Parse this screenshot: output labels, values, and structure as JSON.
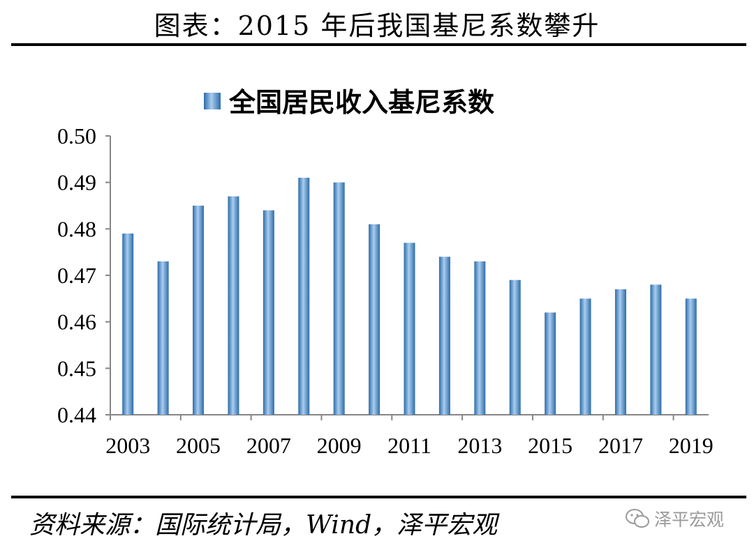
{
  "header": {
    "title": "图表：2015 年后我国基尼系数攀升"
  },
  "footer": {
    "source": "资料来源：国际统计局，Wind，泽平宏观"
  },
  "watermark": {
    "text": "泽平宏观",
    "icon": "wechat-icon"
  },
  "colors": {
    "bar_light": "#a9cdef",
    "bar_mid": "#5b9bd5",
    "bar_dark": "#2e6ca8"
  },
  "chart_data": {
    "type": "bar",
    "title": "",
    "legend": {
      "label": "全国居民收入基尼系数",
      "placement": "top"
    },
    "categories": [
      "2003",
      "2004",
      "2005",
      "2006",
      "2007",
      "2008",
      "2009",
      "2010",
      "2011",
      "2012",
      "2013",
      "2014",
      "2015",
      "2016",
      "2017",
      "2018",
      "2019"
    ],
    "values": [
      0.479,
      0.473,
      0.485,
      0.487,
      0.484,
      0.491,
      0.49,
      0.481,
      0.477,
      0.474,
      0.473,
      0.469,
      0.462,
      0.465,
      0.467,
      0.468,
      0.465
    ],
    "x_tick_labels": [
      "2003",
      "2005",
      "2007",
      "2009",
      "2011",
      "2013",
      "2015",
      "2017",
      "2019"
    ],
    "y_tick_labels": [
      "0.50",
      "0.49",
      "0.48",
      "0.47",
      "0.46",
      "0.45",
      "0.44"
    ],
    "ylim": [
      0.44,
      0.5
    ],
    "xlabel": "",
    "ylabel": "",
    "grid": false
  }
}
